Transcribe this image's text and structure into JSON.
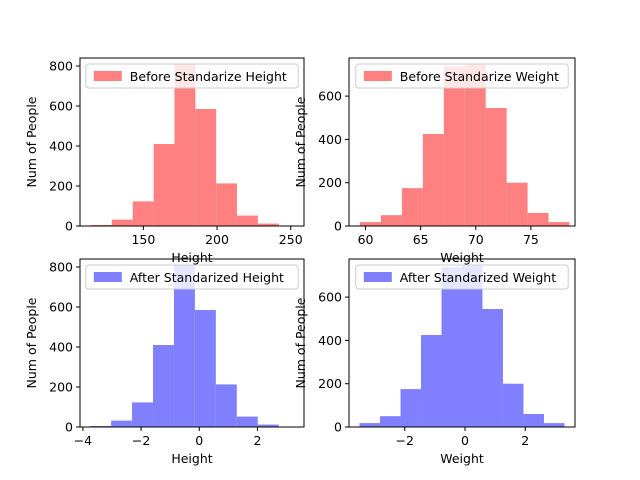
{
  "chart_data": [
    {
      "type": "bar",
      "subtype": "histogram",
      "xlabel": "Height",
      "ylabel": "Num of People",
      "xlim": [
        107,
        259
      ],
      "ylim": [
        0,
        840
      ],
      "xticks": [
        150,
        200,
        250
      ],
      "yticks": [
        0,
        200,
        400,
        600,
        800
      ],
      "bin_edges": [
        114.5,
        128.6,
        142.8,
        157.0,
        171.1,
        185.3,
        199.4,
        213.5,
        227.7,
        241.9,
        256.0
      ],
      "values": [
        5,
        32,
        123,
        410,
        808,
        585,
        213,
        52,
        12,
        0
      ],
      "color": "#ff8080",
      "legend": {
        "label": "Before Standarize Height",
        "position": "top"
      },
      "grid": false
    },
    {
      "type": "bar",
      "subtype": "histogram",
      "xlabel": "Weight",
      "ylabel": "Num of People",
      "xlim": [
        58.5,
        79.0
      ],
      "ylim": [
        0,
        776
      ],
      "xticks": [
        60,
        65,
        70,
        75
      ],
      "yticks": [
        0,
        200,
        400,
        600
      ],
      "bin_edges": [
        59.5,
        61.4,
        63.3,
        65.2,
        67.1,
        69.0,
        70.9,
        72.8,
        74.7,
        76.6,
        78.5
      ],
      "values": [
        18,
        50,
        175,
        425,
        738,
        745,
        545,
        200,
        60,
        18
      ],
      "color": "#ff8080",
      "legend": {
        "label": "Before Standarize Weight",
        "position": "top"
      },
      "grid": false
    },
    {
      "type": "bar",
      "subtype": "histogram",
      "xlabel": "Height",
      "ylabel": "Num of People",
      "xlim": [
        -4.1,
        3.6
      ],
      "ylim": [
        0,
        840
      ],
      "xticks": [
        -4,
        -2,
        0,
        2
      ],
      "yticks": [
        0,
        200,
        400,
        600,
        800
      ],
      "bin_edges": [
        -3.75,
        -3.03,
        -2.31,
        -1.59,
        -0.87,
        -0.15,
        0.57,
        1.29,
        2.01,
        2.73,
        3.45
      ],
      "values": [
        5,
        32,
        123,
        410,
        808,
        585,
        213,
        52,
        12,
        0
      ],
      "color": "#8080ff",
      "legend": {
        "label": "After Standarized Height",
        "position": "top"
      },
      "grid": false
    },
    {
      "type": "bar",
      "subtype": "histogram",
      "xlabel": "Weight",
      "ylabel": "Num of People",
      "xlim": [
        -3.85,
        3.65
      ],
      "ylim": [
        0,
        776
      ],
      "xticks": [
        -2,
        0,
        2
      ],
      "yticks": [
        0,
        200,
        400,
        600
      ],
      "bin_edges": [
        -3.5,
        -2.82,
        -2.14,
        -1.46,
        -0.78,
        -0.1,
        0.58,
        1.26,
        1.94,
        2.62,
        3.3
      ],
      "values": [
        18,
        50,
        175,
        425,
        738,
        745,
        545,
        200,
        60,
        18
      ],
      "color": "#8080ff",
      "legend": {
        "label": "After Standarized Weight",
        "position": "top"
      },
      "grid": false
    }
  ]
}
